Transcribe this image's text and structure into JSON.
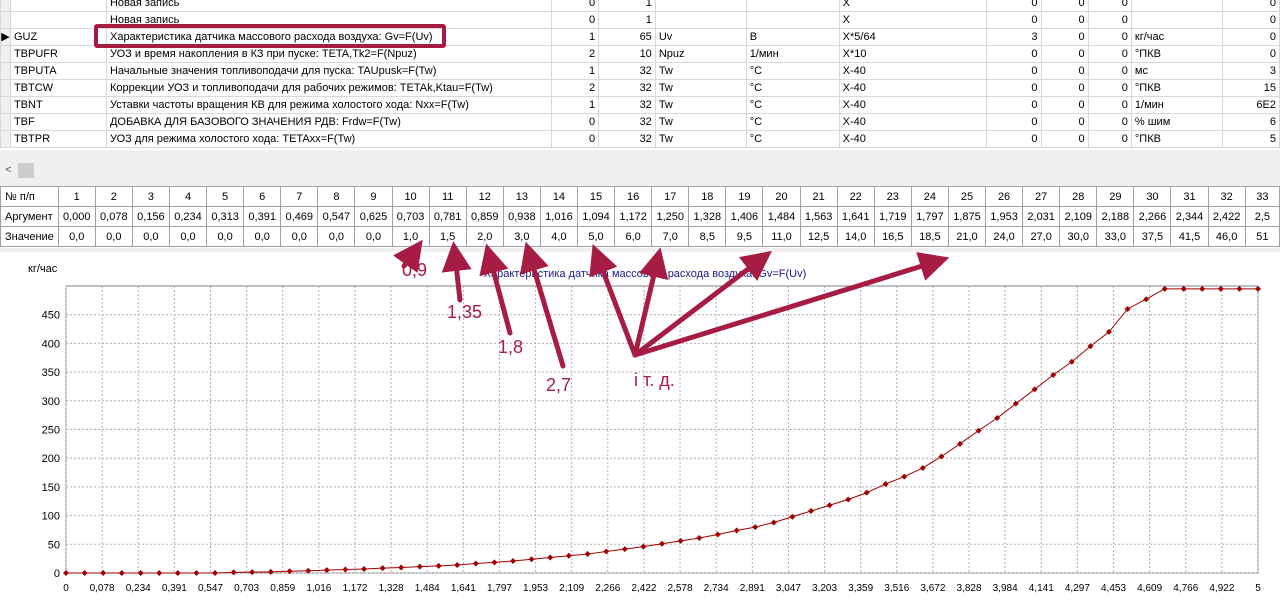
{
  "top_table": {
    "rows": [
      {
        "indicator": "",
        "code": "",
        "name": "Новая запись",
        "c1": "0",
        "c2": "1",
        "c3": "",
        "c4": "",
        "c5": "X",
        "c6": "0",
        "c7": "0",
        "c8": "0",
        "c9": "",
        "c10": "0"
      },
      {
        "indicator": "",
        "code": "",
        "name": "Новая запись",
        "c1": "0",
        "c2": "1",
        "c3": "",
        "c4": "",
        "c5": "X",
        "c6": "0",
        "c7": "0",
        "c8": "0",
        "c9": "",
        "c10": "0"
      },
      {
        "indicator": "▶",
        "code": "GUZ",
        "name": "Характеристика датчика массового расхода воздуха: Gv=F(Uv)",
        "c1": "1",
        "c2": "65",
        "c3": "Uv",
        "c4": "В",
        "c5": "X*5/64",
        "c6": "3",
        "c7": "0",
        "c8": "0",
        "c9": "кг/час",
        "c10": "0"
      },
      {
        "indicator": "",
        "code": "TBPUFR",
        "name": "УОЗ и время накопления в КЗ при пуске: TETA,Tk2=F(Npuz)",
        "c1": "2",
        "c2": "10",
        "c3": "Npuz",
        "c4": "1/мин",
        "c5": "X*10",
        "c6": "0",
        "c7": "0",
        "c8": "0",
        "c9": "°ПКВ",
        "c10": "0"
      },
      {
        "indicator": "",
        "code": "TBPUTA",
        "name": "Начальные значения топливоподачи для пуска: TAUpusk=F(Tw)",
        "c1": "1",
        "c2": "32",
        "c3": "Tw",
        "c4": "°C",
        "c5": "X-40",
        "c6": "0",
        "c7": "0",
        "c8": "0",
        "c9": "мс",
        "c10": "3"
      },
      {
        "indicator": "",
        "code": "TBTCW",
        "name": "Коррекции УОЗ и топливоподачи для рабочих режимов: TETAk,Ktau=F(Tw)",
        "c1": "2",
        "c2": "32",
        "c3": "Tw",
        "c4": "°C",
        "c5": "X-40",
        "c6": "0",
        "c7": "0",
        "c8": "0",
        "c9": "°ПКВ",
        "c10": "15"
      },
      {
        "indicator": "",
        "code": "TBNT",
        "name": "Уставки частоты вращения КВ для режима холостого хода: Nxx=F(Tw)",
        "c1": "1",
        "c2": "32",
        "c3": "Tw",
        "c4": "°C",
        "c5": "X-40",
        "c6": "0",
        "c7": "0",
        "c8": "0",
        "c9": "1/мин",
        "c10": "6E2"
      },
      {
        "indicator": "",
        "code": "TBF",
        "name": "ДОБАВКА ДЛЯ БАЗОВОГО ЗНАЧЕНИЯ  РДВ: Frdw=F(Tw)",
        "c1": "0",
        "c2": "32",
        "c3": "Tw",
        "c4": "°C",
        "c5": "X-40",
        "c6": "0",
        "c7": "0",
        "c8": "0",
        "c9": "% шим",
        "c10": "6"
      },
      {
        "indicator": "",
        "code": "TBTPR",
        "name": "УОЗ для режима холостого хода: TETAxx=F(Tw)",
        "c1": "0",
        "c2": "32",
        "c3": "Tw",
        "c4": "°C",
        "c5": "X-40",
        "c6": "0",
        "c7": "0",
        "c8": "0",
        "c9": "°ПКВ",
        "c10": "5"
      }
    ],
    "scroll_left_glyph": "<"
  },
  "point_grid": {
    "row_labels": [
      "№ п/п",
      "Аргумент",
      "Значение"
    ],
    "indices": [
      "1",
      "2",
      "3",
      "4",
      "5",
      "6",
      "7",
      "8",
      "9",
      "10",
      "11",
      "12",
      "13",
      "14",
      "15",
      "16",
      "17",
      "18",
      "19",
      "20",
      "21",
      "22",
      "23",
      "24",
      "25",
      "26",
      "27",
      "28",
      "29",
      "30",
      "31",
      "32",
      "33"
    ],
    "arguments": [
      "0,000",
      "0,078",
      "0,156",
      "0,234",
      "0,313",
      "0,391",
      "0,469",
      "0,547",
      "0,625",
      "0,703",
      "0,781",
      "0,859",
      "0,938",
      "1,016",
      "1,094",
      "1,172",
      "1,250",
      "1,328",
      "1,406",
      "1,484",
      "1,563",
      "1,641",
      "1,719",
      "1,797",
      "1,875",
      "1,953",
      "2,031",
      "2,109",
      "2,188",
      "2,266",
      "2,344",
      "2,422",
      "2,5"
    ],
    "values": [
      "0,0",
      "0,0",
      "0,0",
      "0,0",
      "0,0",
      "0,0",
      "0,0",
      "0,0",
      "0,0",
      "1,0",
      "1,5",
      "2,0",
      "3,0",
      "4,0",
      "5,0",
      "6,0",
      "7,0",
      "8,5",
      "9,5",
      "11,0",
      "12,5",
      "14,0",
      "16,5",
      "18,5",
      "21,0",
      "24,0",
      "27,0",
      "30,0",
      "33,0",
      "37,5",
      "41,5",
      "46,0",
      "51"
    ]
  },
  "annotations": {
    "a1": "0,9",
    "a2": "1,35",
    "a3": "1,8",
    "a4": "2,7",
    "a5": "і т. д.",
    "color": "#a61c42"
  },
  "chart_data": {
    "type": "line",
    "title": "Характеристика датчика массового расхода воздуха: Gv=F(Uv)",
    "ylabel": "кг/час",
    "xlabel": "",
    "xlim": [
      0,
      5.0
    ],
    "ylim": [
      0,
      500
    ],
    "grid": true,
    "yticks": [
      "0",
      "50",
      "100",
      "150",
      "200",
      "250",
      "300",
      "350",
      "400",
      "450"
    ],
    "xtick_labels": [
      "0",
      "0,078",
      "0,234",
      "0,391",
      "0,547",
      "0,703",
      "0,859",
      "1,016",
      "1,172",
      "1,328",
      "1,484",
      "1,641",
      "1,797",
      "1,953",
      "2,109",
      "2,266",
      "2,422",
      "2,578",
      "2,734",
      "2,891",
      "3,047",
      "3,203",
      "3,359",
      "3,516",
      "3,672",
      "3,828",
      "3,984",
      "4,141",
      "4,297",
      "4,453",
      "4,609",
      "4,766",
      "4,922",
      "5"
    ],
    "series_color": "#a00000",
    "x": [
      0,
      0.078,
      0.156,
      0.234,
      0.313,
      0.391,
      0.469,
      0.547,
      0.625,
      0.703,
      0.781,
      0.859,
      0.938,
      1.016,
      1.094,
      1.172,
      1.25,
      1.328,
      1.406,
      1.484,
      1.563,
      1.641,
      1.719,
      1.797,
      1.875,
      1.953,
      2.031,
      2.109,
      2.188,
      2.266,
      2.344,
      2.422,
      2.5,
      2.578,
      2.656,
      2.734,
      2.813,
      2.891,
      2.969,
      3.047,
      3.125,
      3.203,
      3.281,
      3.359,
      3.438,
      3.516,
      3.594,
      3.672,
      3.75,
      3.828,
      3.906,
      3.984,
      4.063,
      4.141,
      4.219,
      4.297,
      4.375,
      4.453,
      4.531,
      4.609,
      4.688,
      4.766,
      4.844,
      4.922,
      5.0
    ],
    "values": [
      0,
      0,
      0,
      0,
      0,
      0,
      0,
      0,
      0,
      1,
      1.5,
      2,
      3,
      4,
      5,
      6,
      7,
      8.5,
      9.5,
      11,
      12.5,
      14,
      16.5,
      18.5,
      21,
      24,
      27,
      30,
      33,
      37.5,
      41.5,
      46,
      51,
      56,
      61,
      67,
      74,
      80,
      88,
      98,
      108,
      118,
      128,
      140,
      155,
      168,
      183,
      203,
      225,
      248,
      270,
      295,
      320,
      345,
      368,
      395,
      420,
      460,
      477,
      495,
      495,
      495,
      495,
      495,
      495
    ]
  }
}
